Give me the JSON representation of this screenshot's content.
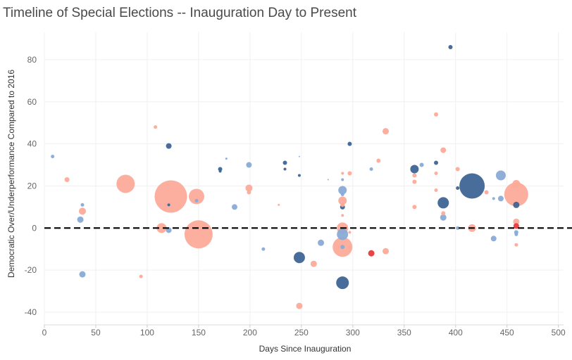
{
  "chart_data": {
    "type": "scatter",
    "title": "Timeline of Special Elections -- Inauguration Day to Present",
    "xlabel": "Days Since Inauguration",
    "ylabel": "Democratic Over/Underperformance Compared to 2016",
    "xlim": [
      0,
      505
    ],
    "ylim": [
      -46,
      93
    ],
    "x_ticks": [
      0,
      50,
      100,
      150,
      200,
      250,
      300,
      350,
      400,
      450,
      500
    ],
    "y_ticks": [
      -40,
      -20,
      0,
      20,
      40,
      60,
      80
    ],
    "reference_line": {
      "y": 0,
      "style": "dashed"
    },
    "grid": true,
    "size_encoding": "bubble size (relative)",
    "colors": {
      "dark_blue": "#3e6595",
      "light_blue": "#89abd6",
      "salmon": "#fcab99",
      "red": "#e63b3c"
    },
    "points": [
      {
        "x": 8,
        "y": 34,
        "s": 2.5,
        "c": "light_blue"
      },
      {
        "x": 22,
        "y": 23,
        "s": 3.5,
        "c": "salmon"
      },
      {
        "x": 35,
        "y": 4,
        "s": 4.5,
        "c": "light_blue"
      },
      {
        "x": 37,
        "y": 11,
        "s": 2.5,
        "c": "light_blue"
      },
      {
        "x": 37,
        "y": 8,
        "s": 5,
        "c": "salmon"
      },
      {
        "x": 37,
        "y": -22,
        "s": 4.5,
        "c": "light_blue"
      },
      {
        "x": 79,
        "y": 21,
        "s": 13,
        "c": "salmon"
      },
      {
        "x": 94,
        "y": -23,
        "s": 2.5,
        "c": "salmon"
      },
      {
        "x": 108,
        "y": 48,
        "s": 2.5,
        "c": "salmon"
      },
      {
        "x": 114,
        "y": 0,
        "s": 7,
        "c": "salmon"
      },
      {
        "x": 121,
        "y": 39,
        "s": 4,
        "c": "dark_blue"
      },
      {
        "x": 121,
        "y": 11,
        "s": 2,
        "c": "dark_blue"
      },
      {
        "x": 121,
        "y": -1,
        "s": 4,
        "c": "light_blue"
      },
      {
        "x": 123,
        "y": 15,
        "s": 23,
        "c": "salmon"
      },
      {
        "x": 148,
        "y": 15,
        "s": 11,
        "c": "salmon"
      },
      {
        "x": 148,
        "y": 13,
        "s": 2.5,
        "c": "light_blue"
      },
      {
        "x": 150,
        "y": -3,
        "s": 20,
        "c": "salmon"
      },
      {
        "x": 171,
        "y": 28,
        "s": 3,
        "c": "dark_blue"
      },
      {
        "x": 171,
        "y": 27,
        "s": 2,
        "c": "dark_blue"
      },
      {
        "x": 177,
        "y": 33,
        "s": 1.5,
        "c": "light_blue"
      },
      {
        "x": 185,
        "y": 10,
        "s": 4,
        "c": "light_blue"
      },
      {
        "x": 199,
        "y": 30,
        "s": 4,
        "c": "light_blue"
      },
      {
        "x": 199,
        "y": 19,
        "s": 5,
        "c": "salmon"
      },
      {
        "x": 199,
        "y": 17,
        "s": 3,
        "c": "salmon"
      },
      {
        "x": 213,
        "y": -10,
        "s": 2.5,
        "c": "light_blue"
      },
      {
        "x": 228,
        "y": 11,
        "s": 1.5,
        "c": "salmon"
      },
      {
        "x": 234,
        "y": 31,
        "s": 3,
        "c": "dark_blue"
      },
      {
        "x": 234,
        "y": 28,
        "s": 2,
        "c": "dark_blue"
      },
      {
        "x": 248,
        "y": 34,
        "s": 1,
        "c": "light_blue"
      },
      {
        "x": 248,
        "y": 25,
        "s": 2,
        "c": "dark_blue"
      },
      {
        "x": 248,
        "y": -14,
        "s": 8,
        "c": "dark_blue"
      },
      {
        "x": 248,
        "y": -37,
        "s": 4.5,
        "c": "salmon"
      },
      {
        "x": 262,
        "y": -17,
        "s": 4.5,
        "c": "salmon"
      },
      {
        "x": 269,
        "y": -7,
        "s": 4.5,
        "c": "light_blue"
      },
      {
        "x": 276,
        "y": 23,
        "s": 1,
        "c": "light_blue"
      },
      {
        "x": 290,
        "y": 26,
        "s": 2,
        "c": "salmon"
      },
      {
        "x": 290,
        "y": 23,
        "s": 2,
        "c": "light_blue"
      },
      {
        "x": 290,
        "y": 18,
        "s": 6,
        "c": "light_blue"
      },
      {
        "x": 290,
        "y": 16,
        "s": 2.5,
        "c": "light_blue"
      },
      {
        "x": 290,
        "y": 13,
        "s": 6,
        "c": "salmon"
      },
      {
        "x": 290,
        "y": 11,
        "s": 3,
        "c": "salmon"
      },
      {
        "x": 290,
        "y": 10,
        "s": 3.5,
        "c": "dark_blue"
      },
      {
        "x": 290,
        "y": 6,
        "s": 2,
        "c": "salmon"
      },
      {
        "x": 290,
        "y": 0,
        "s": 8,
        "c": "salmon"
      },
      {
        "x": 290,
        "y": -3,
        "s": 8,
        "c": "light_blue"
      },
      {
        "x": 290,
        "y": -9,
        "s": 14,
        "c": "salmon"
      },
      {
        "x": 290,
        "y": -9,
        "s": 3,
        "c": "light_blue"
      },
      {
        "x": 290,
        "y": -26,
        "s": 9,
        "c": "dark_blue"
      },
      {
        "x": 297,
        "y": 40,
        "s": 3,
        "c": "dark_blue"
      },
      {
        "x": 297,
        "y": 26,
        "s": 3,
        "c": "salmon"
      },
      {
        "x": 297,
        "y": -2,
        "s": 2,
        "c": "salmon"
      },
      {
        "x": 318,
        "y": 28,
        "s": 2.5,
        "c": "light_blue"
      },
      {
        "x": 318,
        "y": -12,
        "s": 4.5,
        "c": "red"
      },
      {
        "x": 325,
        "y": 32,
        "s": 3,
        "c": "salmon"
      },
      {
        "x": 332,
        "y": 46,
        "s": 4.5,
        "c": "salmon"
      },
      {
        "x": 332,
        "y": -11,
        "s": 4.5,
        "c": "salmon"
      },
      {
        "x": 360,
        "y": 28,
        "s": 6,
        "c": "dark_blue"
      },
      {
        "x": 360,
        "y": 25,
        "s": 3,
        "c": "salmon"
      },
      {
        "x": 360,
        "y": 22,
        "s": 3,
        "c": "salmon"
      },
      {
        "x": 360,
        "y": 10,
        "s": 3,
        "c": "salmon"
      },
      {
        "x": 367,
        "y": 30,
        "s": 3,
        "c": "light_blue"
      },
      {
        "x": 381,
        "y": 54,
        "s": 3,
        "c": "salmon"
      },
      {
        "x": 381,
        "y": 31,
        "s": 3,
        "c": "dark_blue"
      },
      {
        "x": 381,
        "y": 26,
        "s": 2.5,
        "c": "salmon"
      },
      {
        "x": 381,
        "y": 18,
        "s": 2.5,
        "c": "salmon"
      },
      {
        "x": 388,
        "y": 37,
        "s": 4,
        "c": "salmon"
      },
      {
        "x": 388,
        "y": 12,
        "s": 8,
        "c": "dark_blue"
      },
      {
        "x": 388,
        "y": 7,
        "s": 3,
        "c": "salmon"
      },
      {
        "x": 388,
        "y": 5,
        "s": 4.5,
        "c": "light_blue"
      },
      {
        "x": 395,
        "y": 86,
        "s": 3,
        "c": "dark_blue"
      },
      {
        "x": 402,
        "y": 28,
        "s": 3,
        "c": "salmon"
      },
      {
        "x": 402,
        "y": 19,
        "s": 2.5,
        "c": "dark_blue"
      },
      {
        "x": 402,
        "y": 0,
        "s": 2.5,
        "c": "light_blue"
      },
      {
        "x": 416,
        "y": 20,
        "s": 18,
        "c": "dark_blue"
      },
      {
        "x": 416,
        "y": 0,
        "s": 5.5,
        "c": "salmon"
      },
      {
        "x": 430,
        "y": 17,
        "s": 3,
        "c": "salmon"
      },
      {
        "x": 437,
        "y": 14,
        "s": 2,
        "c": "light_blue"
      },
      {
        "x": 437,
        "y": -5,
        "s": 4,
        "c": "light_blue"
      },
      {
        "x": 444,
        "y": 25,
        "s": 7,
        "c": "light_blue"
      },
      {
        "x": 444,
        "y": 14,
        "s": 4,
        "c": "light_blue"
      },
      {
        "x": 459,
        "y": 21,
        "s": 5.5,
        "c": "salmon"
      },
      {
        "x": 459,
        "y": 16,
        "s": 17,
        "c": "salmon"
      },
      {
        "x": 459,
        "y": 11,
        "s": 4.5,
        "c": "dark_blue"
      },
      {
        "x": 459,
        "y": 3,
        "s": 4.5,
        "c": "salmon"
      },
      {
        "x": 459,
        "y": 1,
        "s": 4,
        "c": "red"
      },
      {
        "x": 459,
        "y": -2,
        "s": 3,
        "c": "light_blue"
      },
      {
        "x": 459,
        "y": -3,
        "s": 2.5,
        "c": "light_blue"
      },
      {
        "x": 459,
        "y": -8,
        "s": 2.5,
        "c": "salmon"
      }
    ]
  }
}
